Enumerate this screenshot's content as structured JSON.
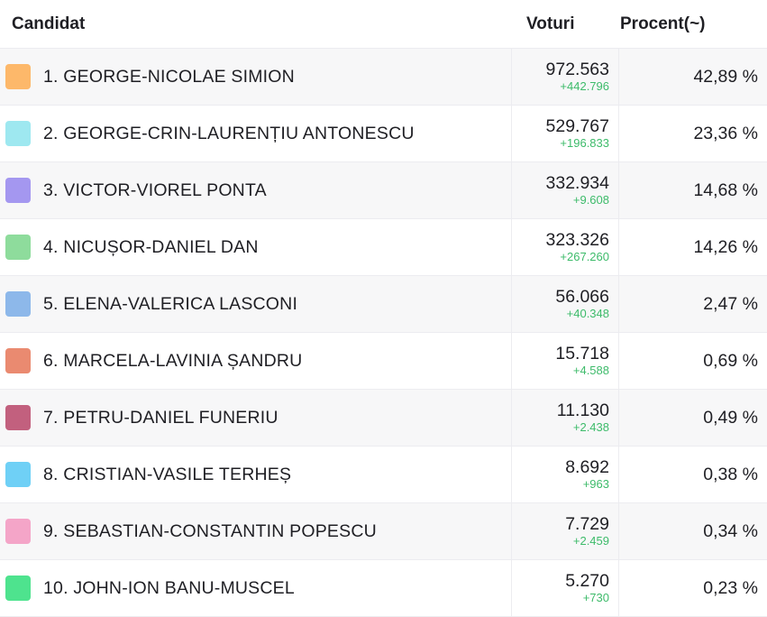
{
  "header": {
    "candidate_label": "Candidat",
    "votes_label": "Voturi",
    "percent_label": "Procent(~)"
  },
  "rows": [
    {
      "name": "1. GEORGE-NICOLAE SIMION",
      "votes": "972.563",
      "delta": "+442.796",
      "percent": "42,89 %",
      "color": "#fdb86a"
    },
    {
      "name": "2. GEORGE-CRIN-LAURENȚIU ANTONESCU",
      "votes": "529.767",
      "delta": "+196.833",
      "percent": "23,36 %",
      "color": "#9ee8f0"
    },
    {
      "name": "3. VICTOR-VIOREL PONTA",
      "votes": "332.934",
      "delta": "+9.608",
      "percent": "14,68 %",
      "color": "#a497f0"
    },
    {
      "name": "4. NICUȘOR-DANIEL DAN",
      "votes": "323.326",
      "delta": "+267.260",
      "percent": "14,26 %",
      "color": "#8edc9c"
    },
    {
      "name": "5. ELENA-VALERICA LASCONI",
      "votes": "56.066",
      "delta": "+40.348",
      "percent": "2,47 %",
      "color": "#8db8ea"
    },
    {
      "name": "6. MARCELA-LAVINIA ȘANDRU",
      "votes": "15.718",
      "delta": "+4.588",
      "percent": "0,69 %",
      "color": "#ea8a70"
    },
    {
      "name": "7. PETRU-DANIEL FUNERIU",
      "votes": "11.130",
      "delta": "+2.438",
      "percent": "0,49 %",
      "color": "#c2607e"
    },
    {
      "name": "8. CRISTIAN-VASILE TERHEȘ",
      "votes": "8.692",
      "delta": "+963",
      "percent": "0,38 %",
      "color": "#6fd0f6"
    },
    {
      "name": "9. SEBASTIAN-CONSTANTIN POPESCU",
      "votes": "7.729",
      "delta": "+2.459",
      "percent": "0,34 %",
      "color": "#f4a5c8"
    },
    {
      "name": "10. JOHN-ION BANU-MUSCEL",
      "votes": "5.270",
      "delta": "+730",
      "percent": "0,23 %",
      "color": "#4ee38e"
    }
  ]
}
